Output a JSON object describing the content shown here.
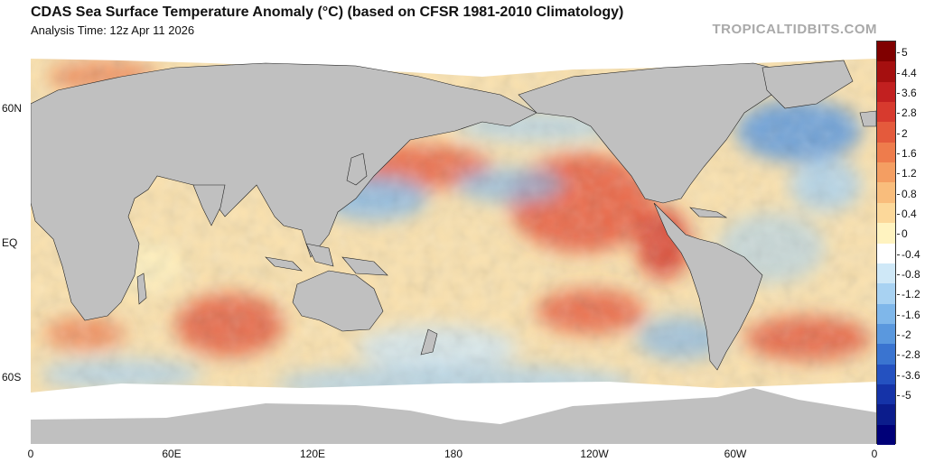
{
  "title": "CDAS Sea Surface Temperature Anomaly (°C) (based on CFSR 1981-2010 Climatology)",
  "subtitle": "Analysis Time: 12z Apr 11 2026",
  "source": "TROPICALTIDBITS.COM",
  "map": {
    "longitude_labels": [
      "0",
      "60E",
      "120E",
      "180",
      "120W",
      "60W",
      "0"
    ],
    "latitude_labels": [
      "60N",
      "EQ",
      "60S"
    ],
    "land_color": "#c0c0c0",
    "ice_color": "#ffffff"
  },
  "colorbar": {
    "labels": [
      "5",
      "4.4",
      "3.6",
      "2.8",
      "2",
      "1.6",
      "1.2",
      "0.8",
      "0.4",
      "0",
      "-0.4",
      "-0.8",
      "-1.2",
      "-1.6",
      "-2",
      "-2.8",
      "-3.6",
      "-5"
    ],
    "colors": [
      "#800000",
      "#a50f0f",
      "#c22020",
      "#d73a2e",
      "#e45a3c",
      "#ee7c4c",
      "#f49e62",
      "#f9bd7c",
      "#fcd89a",
      "#fff3c0",
      "#ffffff",
      "#cfe8f7",
      "#a8d2f2",
      "#7fb7ea",
      "#5a98de",
      "#3a74d0",
      "#2451c0",
      "#1533a8",
      "#0b1c8c",
      "#000078"
    ]
  }
}
